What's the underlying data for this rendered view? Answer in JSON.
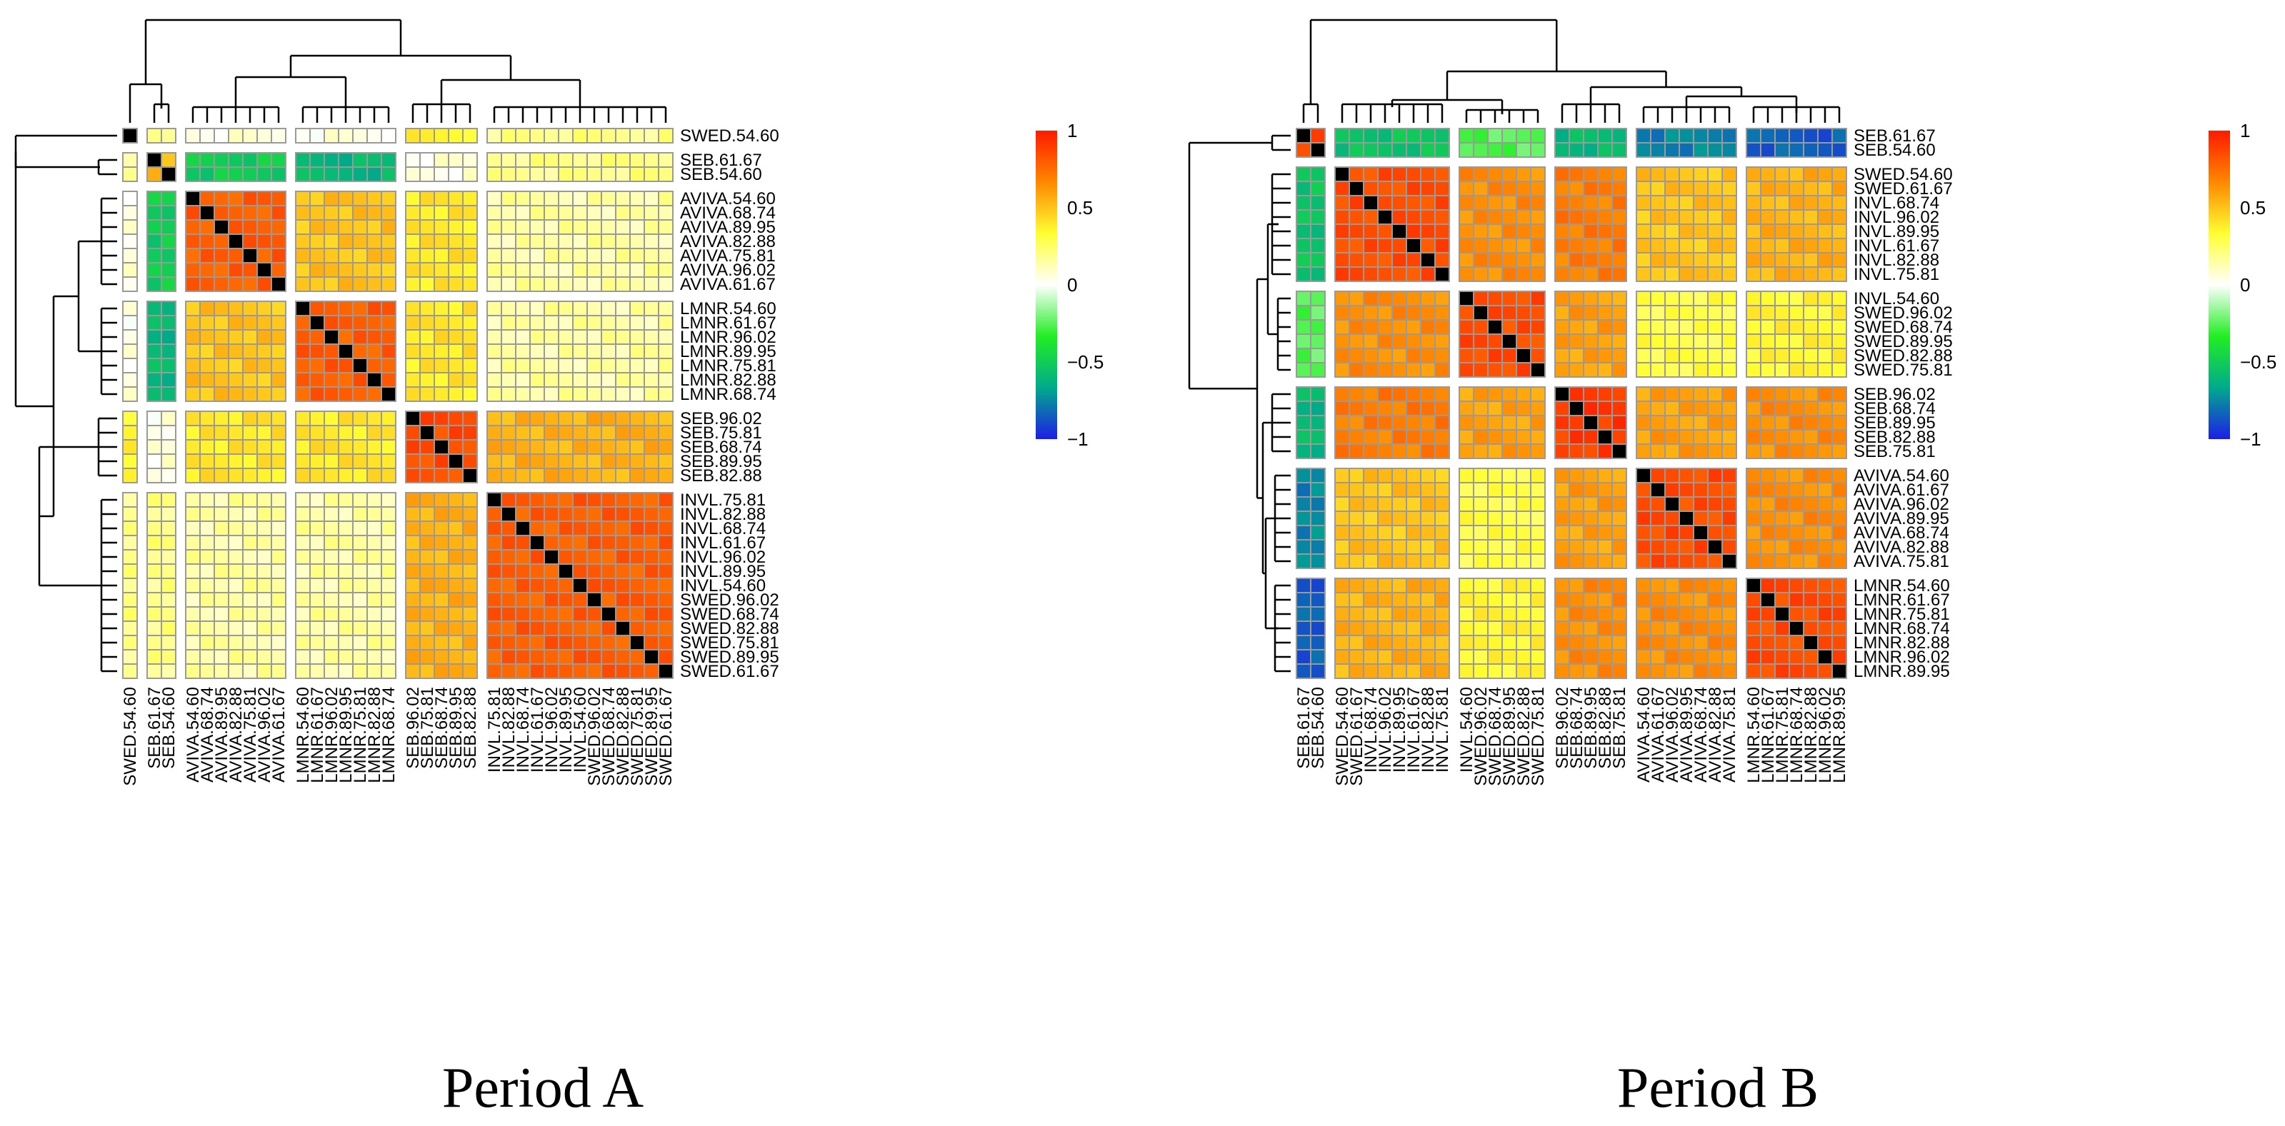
{
  "chart_data": [
    {
      "type": "heatmap",
      "title": "Period A",
      "xlabel": "",
      "ylabel": "",
      "value_range": [
        -1,
        1
      ],
      "row_order": [
        "SWED.54.60",
        "SEB.61.67",
        "SEB.54.60",
        "AVIVA.54.60",
        "AVIVA.68.74",
        "AVIVA.89.95",
        "AVIVA.82.88",
        "AVIVA.75.81",
        "AVIVA.96.02",
        "AVIVA.61.67",
        "LMNR.54.60",
        "LMNR.61.67",
        "LMNR.96.02",
        "LMNR.89.95",
        "LMNR.75.81",
        "LMNR.82.88",
        "LMNR.68.74",
        "SEB.96.02",
        "SEB.75.81",
        "SEB.68.74",
        "SEB.89.95",
        "SEB.82.88",
        "INVL.75.81",
        "INVL.82.88",
        "INVL.68.74",
        "INVL.61.67",
        "INVL.96.02",
        "INVL.89.95",
        "INVL.54.60",
        "SWED.96.02",
        "SWED.68.74",
        "SWED.82.88",
        "SWED.75.81",
        "SWED.89.95",
        "SWED.61.67"
      ],
      "clusters": [
        {
          "labels": [
            "SWED.54.60"
          ]
        },
        {
          "labels": [
            "SEB.61.67",
            "SEB.54.60"
          ]
        },
        {
          "labels": [
            "AVIVA.54.60",
            "AVIVA.68.74",
            "AVIVA.89.95",
            "AVIVA.82.88",
            "AVIVA.75.81",
            "AVIVA.96.02",
            "AVIVA.61.67"
          ]
        },
        {
          "labels": [
            "LMNR.54.60",
            "LMNR.61.67",
            "LMNR.96.02",
            "LMNR.89.95",
            "LMNR.75.81",
            "LMNR.82.88",
            "LMNR.68.74"
          ]
        },
        {
          "labels": [
            "SEB.96.02",
            "SEB.75.81",
            "SEB.68.74",
            "SEB.89.95",
            "SEB.82.88"
          ]
        },
        {
          "labels": [
            "INVL.75.81",
            "INVL.82.88",
            "INVL.68.74",
            "INVL.61.67",
            "INVL.96.02",
            "INVL.89.95",
            "INVL.54.60",
            "SWED.96.02",
            "SWED.68.74",
            "SWED.82.88",
            "SWED.75.81",
            "SWED.89.95",
            "SWED.61.67"
          ]
        }
      ],
      "block_values": [
        [
          1.0,
          0.15,
          0.05,
          0.05,
          0.35,
          0.2
        ],
        [
          0.15,
          0.55,
          -0.5,
          -0.6,
          0.05,
          0.2
        ],
        [
          0.05,
          -0.5,
          0.8,
          0.5,
          0.4,
          0.15
        ],
        [
          0.05,
          -0.6,
          0.5,
          0.8,
          0.4,
          0.15
        ],
        [
          0.35,
          0.05,
          0.4,
          0.4,
          0.85,
          0.55
        ],
        [
          0.2,
          0.2,
          0.15,
          0.15,
          0.55,
          0.8
        ]
      ]
    },
    {
      "type": "heatmap",
      "title": "Period B",
      "xlabel": "",
      "ylabel": "",
      "value_range": [
        -1,
        1
      ],
      "row_order": [
        "SEB.61.67",
        "SEB.54.60",
        "SWED.54.60",
        "SWED.61.67",
        "INVL.68.74",
        "INVL.96.02",
        "INVL.89.95",
        "INVL.61.67",
        "INVL.82.88",
        "INVL.75.81",
        "INVL.54.60",
        "SWED.96.02",
        "SWED.68.74",
        "SWED.89.95",
        "SWED.82.88",
        "SWED.75.81",
        "SEB.96.02",
        "SEB.68.74",
        "SEB.89.95",
        "SEB.82.88",
        "SEB.75.81",
        "AVIVA.54.60",
        "AVIVA.61.67",
        "AVIVA.96.02",
        "AVIVA.89.95",
        "AVIVA.68.74",
        "AVIVA.82.88",
        "AVIVA.75.81",
        "LMNR.54.60",
        "LMNR.61.67",
        "LMNR.75.81",
        "LMNR.68.74",
        "LMNR.82.88",
        "LMNR.96.02",
        "LMNR.89.95"
      ],
      "clusters": [
        {
          "labels": [
            "SEB.61.67",
            "SEB.54.60"
          ]
        },
        {
          "labels": [
            "SWED.54.60",
            "SWED.61.67",
            "INVL.68.74",
            "INVL.96.02",
            "INVL.89.95",
            "INVL.61.67",
            "INVL.82.88",
            "INVL.75.81"
          ]
        },
        {
          "labels": [
            "INVL.54.60",
            "SWED.96.02",
            "SWED.68.74",
            "SWED.89.95",
            "SWED.82.88",
            "SWED.75.81"
          ]
        },
        {
          "labels": [
            "SEB.96.02",
            "SEB.68.74",
            "SEB.89.95",
            "SEB.82.88",
            "SEB.75.81"
          ]
        },
        {
          "labels": [
            "AVIVA.54.60",
            "AVIVA.61.67",
            "AVIVA.96.02",
            "AVIVA.89.95",
            "AVIVA.68.74",
            "AVIVA.82.88",
            "AVIVA.75.81"
          ]
        },
        {
          "labels": [
            "LMNR.54.60",
            "LMNR.61.67",
            "LMNR.75.81",
            "LMNR.68.74",
            "LMNR.82.88",
            "LMNR.96.02",
            "LMNR.89.95"
          ]
        }
      ],
      "block_values": [
        [
          0.85,
          -0.55,
          -0.25,
          -0.6,
          -0.75,
          -0.85
        ],
        [
          -0.55,
          0.85,
          0.65,
          0.7,
          0.5,
          0.55
        ],
        [
          -0.25,
          0.65,
          0.85,
          0.6,
          0.3,
          0.35
        ],
        [
          -0.6,
          0.7,
          0.6,
          0.9,
          0.6,
          0.65
        ],
        [
          -0.75,
          0.5,
          0.3,
          0.6,
          0.85,
          0.65
        ],
        [
          -0.85,
          0.55,
          0.35,
          0.65,
          0.65,
          0.85
        ]
      ]
    }
  ],
  "colorbar": {
    "ticks": [
      "1",
      "0.5",
      "0",
      "−0.5",
      "−1"
    ],
    "stops": [
      "#1e1ee6",
      "#00aa8c",
      "#22ee22",
      "#ffffff",
      "#ffff33",
      "#ff8800",
      "#ff1a00"
    ]
  },
  "palette": {
    "diagonal": "#000000",
    "cell_border": "#9a9a9a",
    "tree": "#000000"
  }
}
